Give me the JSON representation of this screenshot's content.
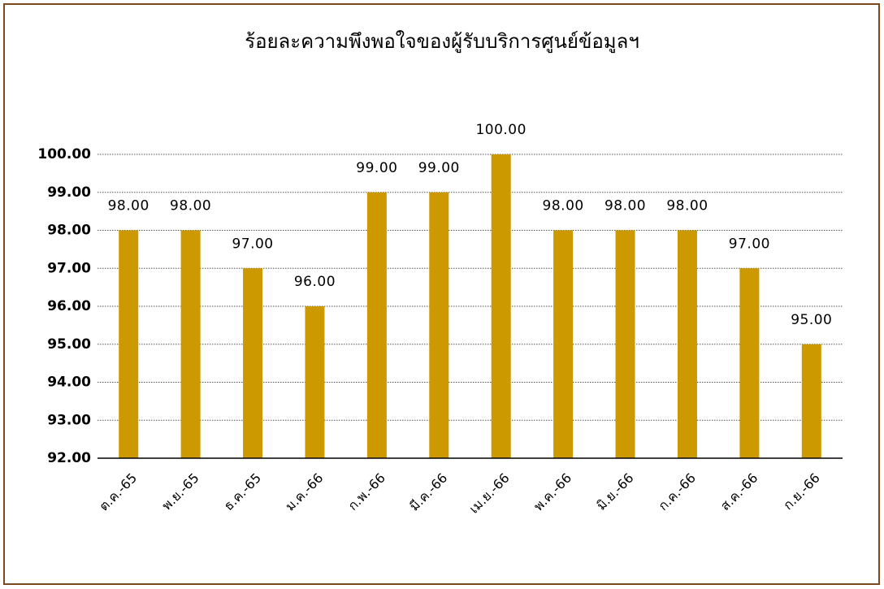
{
  "chart_data": {
    "type": "bar",
    "title": "ร้อยละความพึงพอใจของผู้รับบริการศูนย์ข้อมูลฯ",
    "categories": [
      "ต.ค.-65",
      "พ.ย.-65",
      "ธ.ค.-65",
      "ม.ค.-66",
      "ก.พ.-66",
      "มี.ค.-66",
      "เม.ย.-66",
      "พ.ค.-66",
      "มิ.ย.-66",
      "ก.ค.-66",
      "ส.ค.-66",
      "ก.ย.-66"
    ],
    "values": [
      98,
      98,
      97,
      96,
      99,
      99,
      100,
      98,
      98,
      98,
      97,
      95
    ],
    "value_labels": [
      "98.00",
      "98.00",
      "97.00",
      "96.00",
      "99.00",
      "99.00",
      "100.00",
      "98.00",
      "98.00",
      "98.00",
      "97.00",
      "95.00"
    ],
    "color": "#cc9900",
    "ylim": [
      92,
      100
    ],
    "yticks": [
      {
        "value": 92,
        "label": "92.00"
      },
      {
        "value": 93,
        "label": "93.00"
      },
      {
        "value": 94,
        "label": "94.00"
      },
      {
        "value": 95,
        "label": "95.00"
      },
      {
        "value": 96,
        "label": "96.00"
      },
      {
        "value": 97,
        "label": "97.00"
      },
      {
        "value": 98,
        "label": "98.00"
      },
      {
        "value": 99,
        "label": "99.00"
      },
      {
        "value": 100,
        "label": "100.00"
      }
    ],
    "grid": true
  }
}
